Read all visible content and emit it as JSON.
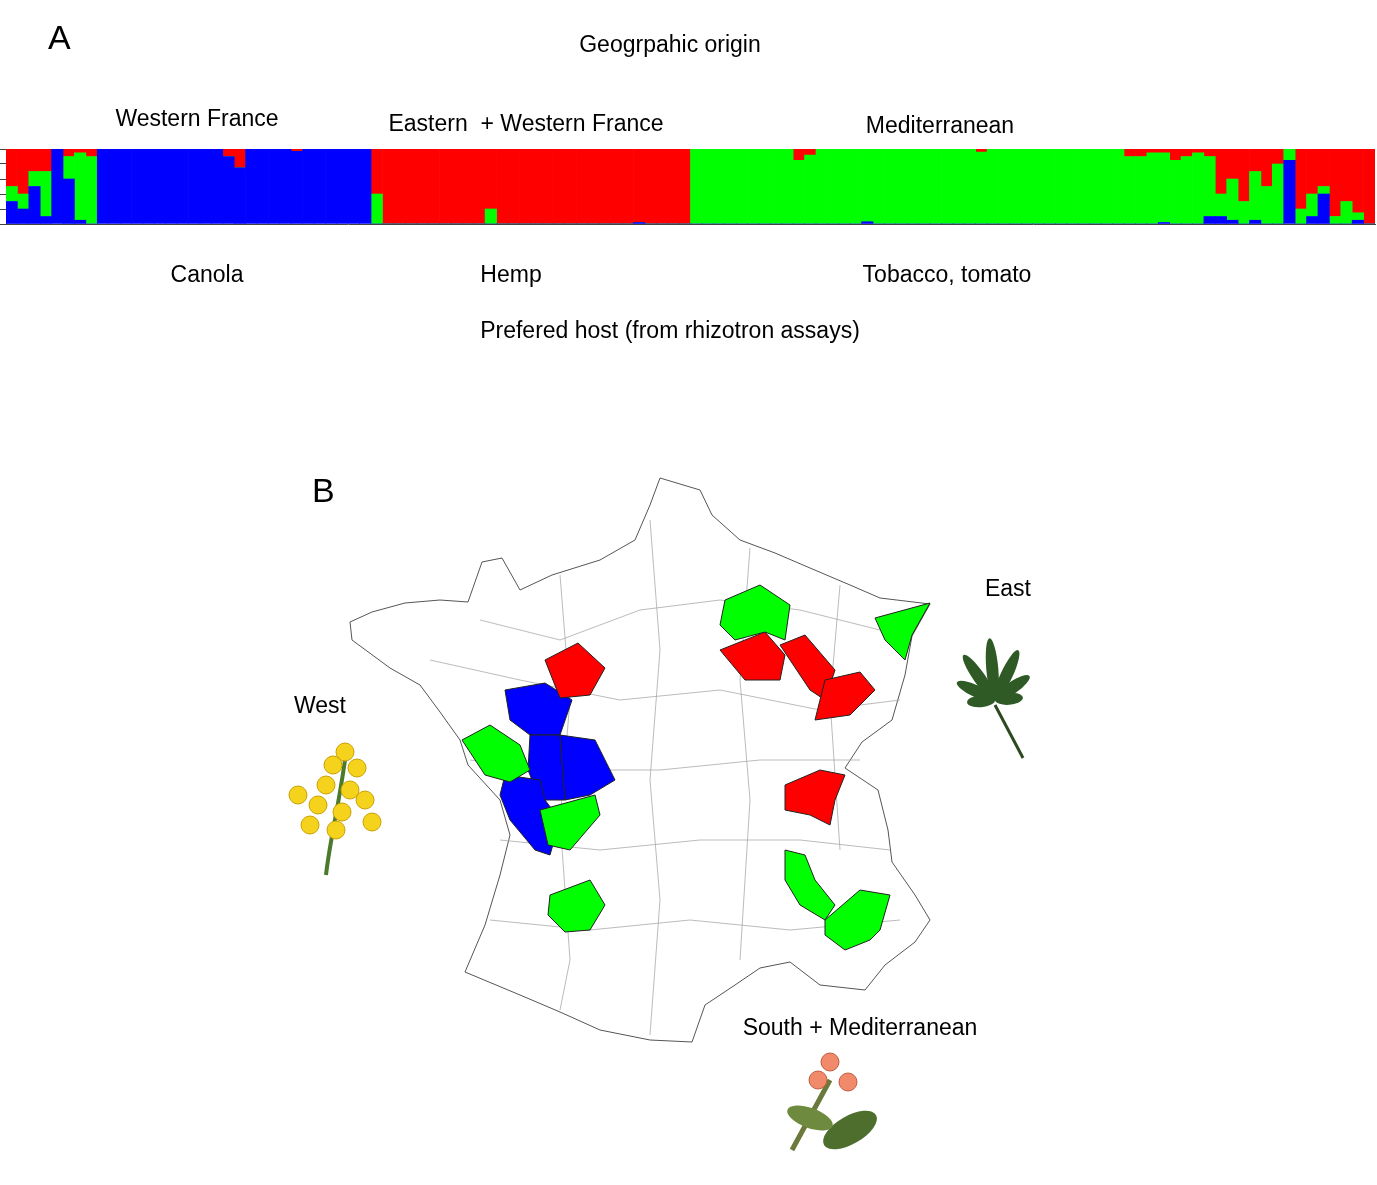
{
  "chart_data": {
    "type": "bar",
    "panel_label": "A",
    "title": "Geogrpahic origin",
    "annotations": {
      "origin_labels": [
        "Western France",
        "Eastern  + Western France",
        "Mediterranean"
      ],
      "host_labels": [
        "Canola",
        "Hemp",
        "Tobacco, tomato"
      ],
      "host_caption": "Prefered host (from rhizotron assays)"
    },
    "stacked": true,
    "grid": false,
    "tick_labels": false,
    "ylim": [
      0,
      1
    ],
    "yticks": [
      0,
      0.2,
      0.4,
      0.6,
      0.8,
      1
    ],
    "categories": [
      null,
      null,
      null,
      null,
      null,
      null,
      null,
      null,
      null,
      null,
      null,
      null,
      null,
      null,
      null,
      null,
      null,
      null,
      null,
      null,
      null,
      null,
      null,
      null,
      null,
      null,
      null,
      null,
      null,
      null,
      null,
      null,
      null,
      null,
      null,
      null,
      null,
      null,
      null,
      null,
      null,
      null,
      null,
      null,
      null,
      null,
      null,
      null,
      null,
      null,
      null,
      null,
      null,
      null,
      null,
      null,
      null,
      null,
      null,
      null,
      null,
      null,
      null,
      null,
      null,
      null,
      null,
      null,
      null,
      null,
      null,
      null,
      null,
      null,
      null,
      null,
      null,
      null,
      null,
      null,
      null,
      null,
      null,
      null,
      null,
      null,
      null,
      null,
      null,
      null,
      null,
      null,
      null,
      null,
      null,
      null,
      null,
      null,
      null,
      null,
      null,
      null,
      null,
      null,
      null,
      null,
      null,
      null,
      null,
      null,
      null,
      null,
      null,
      null,
      null,
      null,
      null,
      null,
      null,
      null
    ],
    "series": [
      {
        "color": "#0000ff",
        "values": [
          0.3,
          0.2,
          0.5,
          0.1,
          1,
          0.6,
          0.05,
          0,
          1,
          1,
          1,
          1,
          1,
          1,
          1,
          1,
          1,
          1,
          1,
          0.9,
          0.75,
          1,
          1,
          1,
          1,
          0.97,
          1,
          1,
          1,
          1,
          1,
          1,
          0,
          0,
          0,
          0,
          0,
          0,
          0,
          0,
          0,
          0,
          0,
          0,
          0,
          0,
          0,
          0,
          0,
          0,
          0,
          0,
          0,
          0,
          0,
          0.02,
          0,
          0,
          0,
          0,
          0,
          0,
          0,
          0,
          0,
          0,
          0,
          0,
          0,
          0,
          0,
          0,
          0,
          0,
          0,
          0.03,
          0,
          0,
          0,
          0,
          0,
          0,
          0,
          0,
          0,
          0,
          0,
          0,
          0,
          0,
          0,
          0,
          0,
          0,
          0,
          0,
          0,
          0,
          0,
          0,
          0,
          0.02,
          0,
          0,
          0,
          0.1,
          0.1,
          0.05,
          0,
          0.05,
          0,
          0,
          0.85,
          0,
          0.1,
          0.4,
          0,
          0,
          0.05,
          0
        ]
      },
      {
        "color": "#00ff00",
        "values": [
          0.2,
          0.2,
          0.2,
          0.6,
          0,
          0.3,
          0.9,
          0.9,
          0,
          0,
          0,
          0,
          0,
          0,
          0,
          0,
          0,
          0,
          0,
          0,
          0,
          0,
          0,
          0,
          0,
          0,
          0,
          0,
          0,
          0,
          0,
          0,
          0.4,
          0,
          0,
          0,
          0,
          0,
          0,
          0,
          0,
          0,
          0.2,
          0,
          0,
          0,
          0,
          0,
          0,
          0,
          0,
          0,
          0,
          0,
          0,
          0,
          0,
          0,
          0,
          0,
          1,
          1,
          1,
          1,
          1,
          1,
          1,
          1,
          1,
          0.85,
          0.92,
          1,
          1,
          1,
          1,
          0.97,
          1,
          1,
          1,
          1,
          1,
          1,
          1,
          1,
          1,
          0.96,
          1,
          1,
          1,
          1,
          1,
          1,
          1,
          1,
          1,
          1,
          1,
          1,
          0.9,
          0.9,
          0.95,
          0.93,
          0.85,
          0.9,
          0.95,
          0.8,
          0.3,
          0.55,
          0.3,
          0.65,
          0.5,
          0.8,
          0.15,
          0.2,
          0.3,
          0.1,
          0.1,
          0.3,
          0.1,
          0
        ]
      },
      {
        "color": "#ff0000",
        "values": [
          0.5,
          0.6,
          0.3,
          0.3,
          0,
          0.1,
          0.05,
          0.1,
          0,
          0,
          0,
          0,
          0,
          0,
          0,
          0,
          0,
          0,
          0,
          0.1,
          0.25,
          0,
          0,
          0,
          0,
          0.03,
          0,
          0,
          0,
          0,
          0,
          0,
          0.6,
          1,
          1,
          1,
          1,
          1,
          1,
          1,
          1,
          1,
          0.8,
          1,
          1,
          1,
          1,
          1,
          1,
          1,
          1,
          1,
          1,
          1,
          1,
          0.98,
          1,
          1,
          1,
          1,
          0,
          0,
          0,
          0,
          0,
          0,
          0,
          0,
          0,
          0.15,
          0.08,
          0,
          0,
          0,
          0,
          0,
          0,
          0,
          0,
          0,
          0,
          0,
          0,
          0,
          0,
          0.04,
          0,
          0,
          0,
          0,
          0,
          0,
          0,
          0,
          0,
          0,
          0,
          0,
          0.1,
          0.1,
          0.05,
          0.05,
          0.15,
          0.1,
          0.05,
          0.1,
          0.6,
          0.4,
          0.7,
          0.3,
          0.5,
          0.2,
          0,
          0.8,
          0.6,
          0.5,
          0.9,
          0.7,
          0.85,
          1
        ]
      }
    ]
  },
  "map": {
    "panel_label": "B",
    "region_labels": [
      "West",
      "East",
      "South + Mediterranean"
    ],
    "area_colors": [
      "#0000ff",
      "#0000ff",
      "#0000ff",
      "#0000ff",
      "#00ff00",
      "#00ff00",
      "#00ff00",
      "#ff0000",
      "#ff0000",
      "#ff0000",
      "#ff0000",
      "#ff0000",
      "#00ff00",
      "#00ff00",
      "#00ff00",
      "#00ff00"
    ]
  }
}
